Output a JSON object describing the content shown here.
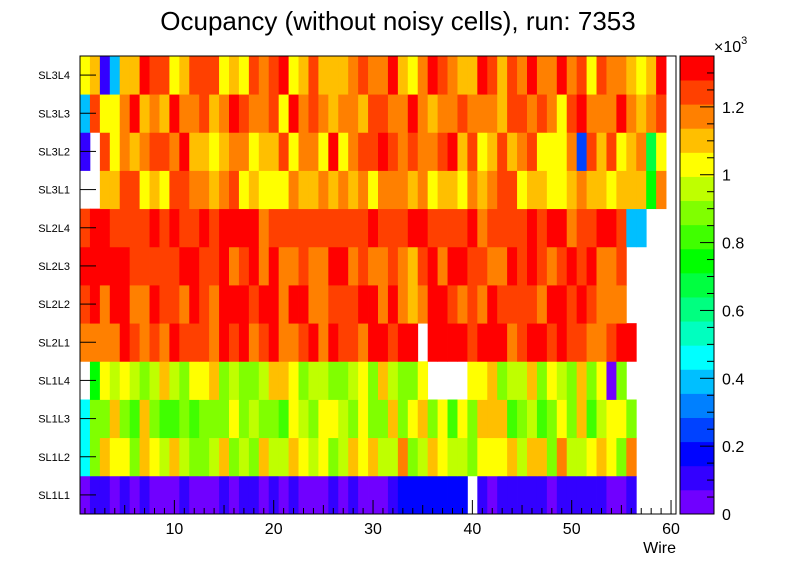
{
  "chart_data": {
    "type": "heatmap",
    "title": "Ocupancy (without noisy cells), run: 7353",
    "xlabel": "Wire",
    "ylabel": "",
    "x_range": [
      0.5,
      60.5
    ],
    "x_ticks": [
      10,
      20,
      30,
      40,
      50,
      60
    ],
    "y_categories": [
      "SL1L1",
      "SL1L2",
      "SL1L3",
      "SL1L4",
      "SL2L1",
      "SL2L2",
      "SL2L3",
      "SL2L4",
      "SL3L1",
      "SL3L2",
      "SL3L3",
      "SL3L4"
    ],
    "z_range": [
      0,
      1350
    ],
    "z_ticks": [
      0,
      200,
      400,
      600,
      800,
      1000,
      1200
    ],
    "z_tick_labels": [
      "0",
      "0.2",
      "0.4",
      "0.6",
      "0.8",
      "1",
      "1.2"
    ],
    "z_exponent_label": "×10",
    "z_exponent_power": "3",
    "palette": [
      "#7000ff",
      "#3300ff",
      "#0004ff",
      "#0042ff",
      "#0080ff",
      "#00bfff",
      "#00ffff",
      "#00ffbf",
      "#00ff80",
      "#00ff40",
      "#00ff00",
      "#40ff00",
      "#80ff00",
      "#bfff00",
      "#ffff00",
      "#ffbf00",
      "#ff8000",
      "#ff4000",
      "#ff0000"
    ],
    "profiles": [
      {
        "row": "SL1L1",
        "first": 1,
        "last": 56,
        "lo": 40,
        "hi": 110
      },
      {
        "row": "SL1L2",
        "first": 1,
        "last": 56,
        "lo": 850,
        "hi": 1180
      },
      {
        "row": "SL1L3",
        "first": 1,
        "last": 56,
        "lo": 800,
        "hi": 1120
      },
      {
        "row": "SL1L4",
        "first": 1,
        "last": 55,
        "lo": 850,
        "hi": 1100
      },
      {
        "row": "SL2L1",
        "first": 1,
        "last": 56,
        "lo": 1150,
        "hi": 1350
      },
      {
        "row": "SL2L2",
        "first": 1,
        "last": 55,
        "lo": 1150,
        "hi": 1350
      },
      {
        "row": "SL2L3",
        "first": 1,
        "last": 55,
        "lo": 1150,
        "hi": 1350
      },
      {
        "row": "SL2L4",
        "first": 1,
        "last": 56,
        "lo": 1200,
        "hi": 1350
      },
      {
        "row": "SL3L1",
        "first": 3,
        "last": 59,
        "lo": 1000,
        "hi": 1250
      },
      {
        "row": "SL3L2",
        "first": 3,
        "last": 59,
        "lo": 1000,
        "hi": 1300
      },
      {
        "row": "SL3L3",
        "first": 1,
        "last": 59,
        "lo": 1050,
        "hi": 1300
      },
      {
        "row": "SL3L4",
        "first": 1,
        "last": 59,
        "lo": 1000,
        "hi": 1300
      }
    ],
    "cell_overrides": [
      {
        "row": "SL1L1",
        "wire": 33,
        "value": 150
      },
      {
        "row": "SL1L1",
        "wire": 34,
        "value": 150
      },
      {
        "row": "SL1L1",
        "wire": 35,
        "value": 150
      },
      {
        "row": "SL1L1",
        "wire": 36,
        "value": 150
      },
      {
        "row": "SL1L1",
        "wire": 37,
        "value": 150
      },
      {
        "row": "SL1L1",
        "wire": 38,
        "value": 150
      },
      {
        "row": "SL1L1",
        "wire": 39,
        "value": 150
      },
      {
        "row": "SL1L1",
        "wire": 40,
        "value": null
      },
      {
        "row": "SL1L2",
        "wire": 1,
        "value": 430
      },
      {
        "row": "SL1L3",
        "wire": 1,
        "value": 430
      },
      {
        "row": "SL1L4",
        "wire": 1,
        "value": null
      },
      {
        "row": "SL1L4",
        "wire": 2,
        "value": 720
      },
      {
        "row": "SL1L4",
        "wire": 36,
        "value": null
      },
      {
        "row": "SL1L4",
        "wire": 37,
        "value": null
      },
      {
        "row": "SL1L4",
        "wire": 38,
        "value": null
      },
      {
        "row": "SL1L4",
        "wire": 39,
        "value": null
      },
      {
        "row": "SL1L4",
        "wire": 54,
        "value": 50
      },
      {
        "row": "SL2L1",
        "wire": 35,
        "value": null
      },
      {
        "row": "SL2L2",
        "wire": 34,
        "value": 1100
      },
      {
        "row": "SL2L3",
        "wire": 34,
        "value": 1100
      },
      {
        "row": "SL2L4",
        "wire": 56,
        "value": 420
      },
      {
        "row": "SL2L4",
        "wire": 57,
        "value": 420
      },
      {
        "row": "SL3L1",
        "wire": 58,
        "value": 750
      },
      {
        "row": "SL3L2",
        "wire": 1,
        "value": 80
      },
      {
        "row": "SL3L2",
        "wire": 58,
        "value": 700
      },
      {
        "row": "SL3L2",
        "wire": 51,
        "value": 250
      },
      {
        "row": "SL3L3",
        "wire": 1,
        "value": 420
      },
      {
        "row": "SL3L4",
        "wire": 3,
        "value": 120
      },
      {
        "row": "SL3L4",
        "wire": 4,
        "value": 420
      }
    ]
  }
}
